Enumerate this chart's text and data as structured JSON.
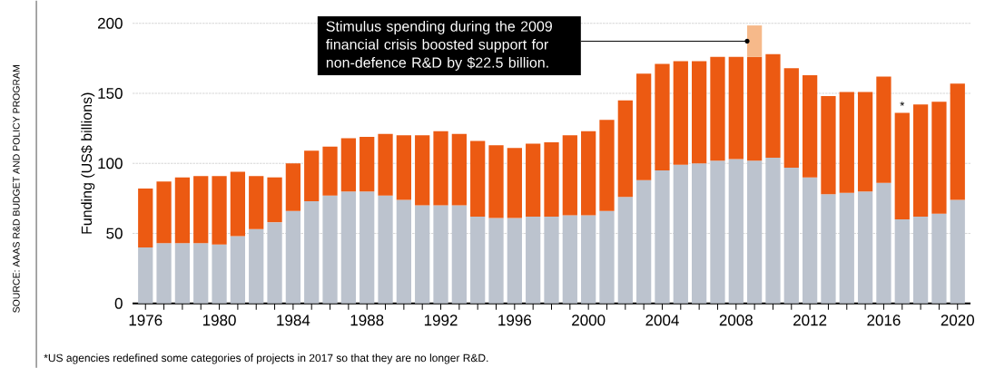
{
  "chart_data": {
    "type": "bar",
    "stacked": true,
    "ylabel": "Funding (US$ billions)",
    "x": [
      1976,
      1977,
      1978,
      1979,
      1980,
      1981,
      1982,
      1983,
      1984,
      1985,
      1986,
      1987,
      1988,
      1989,
      1990,
      1991,
      1992,
      1993,
      1994,
      1995,
      1996,
      1997,
      1998,
      1999,
      2000,
      2001,
      2002,
      2003,
      2004,
      2005,
      2006,
      2007,
      2008,
      2009,
      2010,
      2011,
      2012,
      2013,
      2014,
      2015,
      2016,
      2017,
      2018,
      2019,
      2020
    ],
    "series": [
      {
        "color": "#bcc3ce",
        "values": [
          40,
          43,
          43,
          43,
          42,
          48,
          53,
          58,
          66,
          73,
          77,
          80,
          80,
          77,
          74,
          70,
          70,
          70,
          62,
          61,
          61,
          62,
          62,
          63,
          63,
          66,
          76,
          88,
          95,
          99,
          100,
          102,
          103,
          102,
          104,
          97,
          90,
          78,
          79,
          80,
          86,
          60,
          62,
          64,
          74
        ]
      },
      {
        "color": "#ec5a12",
        "values": [
          42,
          44,
          47,
          48,
          49,
          46,
          38,
          32,
          34,
          36,
          35,
          38,
          39,
          44,
          46,
          50,
          53,
          51,
          54,
          52,
          50,
          52,
          53,
          57,
          60,
          65,
          69,
          76,
          76,
          74,
          73,
          74,
          73,
          74,
          74,
          71,
          73,
          70,
          72,
          71,
          76,
          76,
          80,
          80,
          83
        ]
      },
      {
        "color": "#f6b98a",
        "values": [
          null,
          null,
          null,
          null,
          null,
          null,
          null,
          null,
          null,
          null,
          null,
          null,
          null,
          null,
          null,
          null,
          null,
          null,
          null,
          null,
          null,
          null,
          null,
          null,
          null,
          null,
          null,
          null,
          null,
          null,
          null,
          null,
          null,
          22.5,
          null,
          null,
          null,
          null,
          null,
          null,
          null,
          null,
          null,
          null,
          null
        ]
      }
    ],
    "xlim": [
      1975.3,
      2020.7
    ],
    "ylim": [
      0,
      200
    ],
    "yticks": [
      0,
      50,
      100,
      150,
      200
    ],
    "xticks": [
      1976,
      {
        "value": 1977,
        "label": null
      },
      {
        "value": 1978,
        "label": null
      },
      {
        "value": 1979,
        "label": null
      },
      1980,
      {
        "value": 1981,
        "label": null
      },
      {
        "value": 1982,
        "label": null
      },
      {
        "value": 1983,
        "label": null
      },
      1984,
      {
        "value": 1985,
        "label": null
      },
      {
        "value": 1986,
        "label": null
      },
      {
        "value": 1987,
        "label": null
      },
      1988,
      {
        "value": 1989,
        "label": null
      },
      {
        "value": 1990,
        "label": null
      },
      {
        "value": 1991,
        "label": null
      },
      1992,
      {
        "value": 1993,
        "label": null
      },
      {
        "value": 1994,
        "label": null
      },
      {
        "value": 1995,
        "label": null
      },
      1996,
      {
        "value": 1997,
        "label": null
      },
      {
        "value": 1998,
        "label": null
      },
      {
        "value": 1999,
        "label": null
      },
      2000,
      {
        "value": 2001,
        "label": null
      },
      {
        "value": 2002,
        "label": null
      },
      {
        "value": 2003,
        "label": null
      },
      2004,
      {
        "value": 2005,
        "label": null
      },
      {
        "value": 2006,
        "label": null
      },
      {
        "value": 2007,
        "label": null
      },
      2008,
      {
        "value": 2009,
        "label": null
      },
      {
        "value": 2010,
        "label": null
      },
      {
        "value": 2011,
        "label": null
      },
      2012,
      {
        "value": 2013,
        "label": null
      },
      {
        "value": 2014,
        "label": null
      },
      {
        "value": 2015,
        "label": null
      },
      2016,
      {
        "value": 2017,
        "label": null
      },
      {
        "value": 2018,
        "label": null
      },
      {
        "value": 2019,
        "label": null
      },
      2020
    ],
    "grid": "y",
    "annotations": [
      "Stimulus spending during the 2009 financial crisis boosted support for non-defence R&D by $22.5 billion.",
      {
        "text": "*",
        "x": 2017,
        "y": 136
      },
      "*US agencies redefined some categories of projects in 2017 so that they are no longer R&D.",
      "SOURCE: AAAS R&D BUDGET AND POLICY PROGRAM"
    ]
  }
}
